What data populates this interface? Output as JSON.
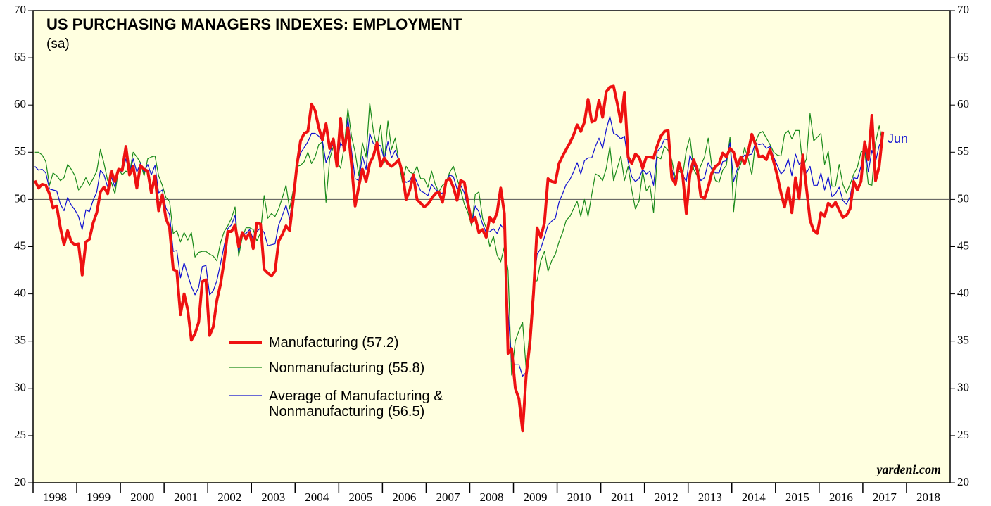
{
  "chart_data": {
    "type": "line",
    "title": "US PURCHASING MANAGERS INDEXES: EMPLOYMENT",
    "subtitle": "(sa)",
    "annotations": [
      "Jun",
      "yardeni.com"
    ],
    "x": [
      "1998-01",
      "1998-02",
      "1998-03",
      "1998-04",
      "1998-05",
      "1998-06",
      "1998-07",
      "1998-08",
      "1998-09",
      "1998-10",
      "1998-11",
      "1998-12",
      "1999-01",
      "1999-02",
      "1999-03",
      "1999-04",
      "1999-05",
      "1999-06",
      "1999-07",
      "1999-08",
      "1999-09",
      "1999-10",
      "1999-11",
      "1999-12",
      "2000-01",
      "2000-02",
      "2000-03",
      "2000-04",
      "2000-05",
      "2000-06",
      "2000-07",
      "2000-08",
      "2000-09",
      "2000-10",
      "2000-11",
      "2000-12",
      "2001-01",
      "2001-02",
      "2001-03",
      "2001-04",
      "2001-05",
      "2001-06",
      "2001-07",
      "2001-08",
      "2001-09",
      "2001-10",
      "2001-11",
      "2001-12",
      "2002-01",
      "2002-02",
      "2002-03",
      "2002-04",
      "2002-05",
      "2002-06",
      "2002-07",
      "2002-08",
      "2002-09",
      "2002-10",
      "2002-11",
      "2002-12",
      "2003-01",
      "2003-02",
      "2003-03",
      "2003-04",
      "2003-05",
      "2003-06",
      "2003-07",
      "2003-08",
      "2003-09",
      "2003-10",
      "2003-11",
      "2003-12",
      "2004-01",
      "2004-02",
      "2004-03",
      "2004-04",
      "2004-05",
      "2004-06",
      "2004-07",
      "2004-08",
      "2004-09",
      "2004-10",
      "2004-11",
      "2004-12",
      "2005-01",
      "2005-02",
      "2005-03",
      "2005-04",
      "2005-05",
      "2005-06",
      "2005-07",
      "2005-08",
      "2005-09",
      "2005-10",
      "2005-11",
      "2005-12",
      "2006-01",
      "2006-02",
      "2006-03",
      "2006-04",
      "2006-05",
      "2006-06",
      "2006-07",
      "2006-08",
      "2006-09",
      "2006-10",
      "2006-11",
      "2006-12",
      "2007-01",
      "2007-02",
      "2007-03",
      "2007-04",
      "2007-05",
      "2007-06",
      "2007-07",
      "2007-08",
      "2007-09",
      "2007-10",
      "2007-11",
      "2007-12",
      "2008-01",
      "2008-02",
      "2008-03",
      "2008-04",
      "2008-05",
      "2008-06",
      "2008-07",
      "2008-08",
      "2008-09",
      "2008-10",
      "2008-11",
      "2008-12",
      "2009-01",
      "2009-02",
      "2009-03",
      "2009-04",
      "2009-05",
      "2009-06",
      "2009-07",
      "2009-08",
      "2009-09",
      "2009-10",
      "2009-11",
      "2009-12",
      "2010-01",
      "2010-02",
      "2010-03",
      "2010-04",
      "2010-05",
      "2010-06",
      "2010-07",
      "2010-08",
      "2010-09",
      "2010-10",
      "2010-11",
      "2010-12",
      "2011-01",
      "2011-02",
      "2011-03",
      "2011-04",
      "2011-05",
      "2011-06",
      "2011-07",
      "2011-08",
      "2011-09",
      "2011-10",
      "2011-11",
      "2011-12",
      "2012-01",
      "2012-02",
      "2012-03",
      "2012-04",
      "2012-05",
      "2012-06",
      "2012-07",
      "2012-08",
      "2012-09",
      "2012-10",
      "2012-11",
      "2012-12",
      "2013-01",
      "2013-02",
      "2013-03",
      "2013-04",
      "2013-05",
      "2013-06",
      "2013-07",
      "2013-08",
      "2013-09",
      "2013-10",
      "2013-11",
      "2013-12",
      "2014-01",
      "2014-02",
      "2014-03",
      "2014-04",
      "2014-05",
      "2014-06",
      "2014-07",
      "2014-08",
      "2014-09",
      "2014-10",
      "2014-11",
      "2014-12",
      "2015-01",
      "2015-02",
      "2015-03",
      "2015-04",
      "2015-05",
      "2015-06",
      "2015-07",
      "2015-08",
      "2015-09",
      "2015-10",
      "2015-11",
      "2015-12",
      "2016-01",
      "2016-02",
      "2016-03",
      "2016-04",
      "2016-05",
      "2016-06",
      "2016-07",
      "2016-08",
      "2016-09",
      "2016-10",
      "2016-11",
      "2016-12",
      "2017-01",
      "2017-02",
      "2017-03",
      "2017-04",
      "2017-05",
      "2017-06"
    ],
    "series": [
      {
        "name": "Manufacturing (57.2)",
        "color": "#ee1111",
        "width": 4,
        "values": [
          52,
          51.2,
          51.6,
          51.5,
          50.6,
          49.1,
          49.3,
          47.0,
          45.2,
          46.7,
          45.5,
          45.2,
          45.3,
          42.0,
          45.5,
          45.8,
          47.5,
          48.6,
          50.8,
          51.3,
          50.6,
          53.0,
          51.9,
          53.2,
          53.1,
          55.6,
          52.6,
          53.5,
          51.2,
          53.6,
          53.2,
          53.0,
          50.7,
          52.5,
          48.8,
          50.5,
          48.0,
          47.0,
          42.6,
          42.4,
          37.8,
          40.0,
          38.3,
          35.1,
          35.8,
          37.0,
          41.3,
          41.5,
          35.6,
          36.5,
          39.3,
          41.0,
          43.5,
          46.6,
          46.6,
          47.3,
          45.0,
          46.5,
          45.8,
          46.5,
          44.8,
          47.5,
          47.4,
          42.6,
          42.2,
          41.9,
          42.4,
          45.6,
          46.3,
          47.2,
          46.7,
          50.0,
          53.6,
          56.2,
          57.0,
          57.2,
          60.1,
          59.4,
          57.6,
          56.3,
          58.0,
          55.4,
          56.4,
          53.5,
          58.6,
          55.2,
          57.6,
          53.7,
          49.3,
          51.4,
          53.2,
          51.9,
          53.8,
          54.6,
          56.0,
          53.5,
          54.4,
          53.8,
          53.5,
          53.8,
          54.2,
          52.8,
          50.0,
          51.0,
          52.6,
          50.0,
          49.6,
          49.2,
          49.5,
          50.1,
          50.6,
          50.8,
          49.7,
          52.0,
          52.2,
          51.3,
          49.9,
          52.0,
          51.8,
          49.6,
          47.6,
          48.1,
          46.5,
          46.8,
          46.0,
          48.1,
          47.6,
          48.6,
          51.2,
          48.5,
          33.7,
          34.2,
          30.0,
          28.9,
          25.5,
          31.4,
          34.7,
          40.1,
          47.0,
          46.0,
          47.5,
          52.2,
          51.9,
          51.8,
          53.8,
          54.6,
          55.3,
          56.0,
          56.8,
          57.9,
          57.2,
          58.2,
          60.6,
          58.2,
          58.4,
          60.5,
          58.7,
          61.4,
          61.9,
          62.0,
          60.2,
          58.2,
          61.3,
          54.5,
          53.8,
          54.8,
          54.5,
          53.3,
          54.5,
          54.5,
          54.4,
          55.7,
          56.7,
          57.2,
          57.3,
          52.3,
          51.6,
          53.9,
          52.5,
          48.5,
          52.7,
          54.2,
          53.2,
          50.3,
          50.1,
          51.3,
          52.8,
          53.5,
          53.8,
          54.9,
          54.5,
          55.4,
          55.0,
          53.5,
          54.5,
          53.8,
          55.0,
          56.9,
          55.8,
          54.5,
          54.6,
          54.2,
          55.3,
          54.0,
          52.5,
          50.7,
          49.2,
          51.2,
          48.6,
          52.3,
          50.1,
          54.7,
          51.2,
          47.8,
          46.7,
          46.4,
          48.6,
          48.2,
          49.6,
          49.2,
          49.7,
          48.9,
          48.1,
          48.3,
          49.0,
          51.9,
          51.0,
          51.9,
          56.1,
          54.2,
          58.9,
          52.0,
          53.5,
          57.2
        ]
      },
      {
        "name": "Nonmanufacturing (55.8)",
        "color": "#1a8a1a",
        "width": 1.2,
        "values": [
          55.0,
          55.0,
          54.7,
          54.0,
          51.5,
          52.8,
          52.5,
          52.0,
          52.3,
          53.7,
          53.2,
          52.5,
          51.0,
          51.5,
          52.3,
          51.5,
          52.2,
          53.0,
          55.3,
          53.8,
          52.0,
          51.8,
          50.6,
          53.2,
          52.6,
          53.0,
          52.8,
          55.0,
          54.5,
          53.9,
          52.5,
          54.3,
          54.5,
          54.6,
          52.5,
          51.5,
          50.2,
          49.8,
          46.4,
          46.7,
          45.5,
          46.5,
          45.7,
          46.5,
          43.9,
          44.4,
          44.5,
          44.5,
          44.2,
          44.0,
          43.5,
          45.4,
          46.6,
          47.2,
          48.0,
          49.2,
          44.0,
          46.0,
          47.0,
          47.0,
          46.8,
          45.6,
          46.5,
          50.4,
          48.0,
          48.5,
          48.2,
          49.0,
          50.2,
          51.5,
          49.0,
          51.0,
          53.5,
          53.6,
          54.0,
          55.0,
          53.8,
          54.5,
          55.8,
          56.1,
          49.7,
          54.3,
          55.6,
          54.0,
          53.3,
          55.6,
          59.6,
          56.7,
          55.0,
          52.5,
          56.0,
          54.5,
          60.2,
          57.2,
          55.5,
          57.9,
          53.9,
          58.3,
          55.3,
          56.5,
          54.0,
          51.8,
          53.5,
          52.9,
          52.7,
          53.5,
          52.2,
          52.2,
          51.3,
          53.0,
          51.6,
          50.8,
          51.5,
          51.8,
          52.9,
          53.5,
          52.2,
          51.0,
          49.5,
          48.6,
          47.2,
          50.5,
          50.8,
          48.0,
          47.0,
          45.0,
          46.1,
          44.1,
          43.4,
          45.0,
          42.5,
          31.4,
          35.0,
          36.1,
          37.0,
          32.0,
          36.2,
          41.3,
          41.4,
          43.5,
          44.5,
          42.4,
          43.5,
          44.2,
          45.5,
          46.5,
          47.8,
          48.2,
          49.0,
          49.8,
          48.2,
          50.0,
          48.2,
          50.5,
          52.7,
          52.5,
          52.0,
          53.3,
          55.6,
          52.0,
          53.3,
          54.6,
          52.0,
          53.5,
          51.0,
          49.0,
          49.8,
          53.0,
          50.9,
          51.5,
          48.6,
          54.5,
          54.3,
          55.6,
          55.2,
          54.2,
          52.2,
          53.0,
          52.6,
          55.2,
          56.6,
          53.2,
          52.5,
          53.6,
          54.5,
          56.5,
          53.5,
          52.0,
          51.8,
          53.1,
          53.6,
          56.6,
          48.7,
          52.8,
          53.8,
          55.5,
          54.3,
          52.6,
          56.1,
          57.0,
          57.2,
          56.5,
          55.8,
          55.0,
          54.7,
          54.6,
          56.9,
          57.3,
          56.4,
          57.3,
          57.3,
          53.4,
          54.3,
          59.1,
          56.2,
          56.6,
          57.0,
          53.7,
          55.1,
          51.4,
          51.4,
          53.7,
          51.6,
          50.7,
          51.6,
          52.7,
          53.4,
          55.0,
          55.2,
          51.6,
          51.5,
          56.0,
          57.8,
          55.8
        ]
      },
      {
        "name": "Average of Manufacturing & Nonmanufacturing (56.5)",
        "color": "#1010d0",
        "width": 1.2,
        "values": [
          53.5,
          53.1,
          53.2,
          52.8,
          51.1,
          51.0,
          50.9,
          49.5,
          48.8,
          50.2,
          49.4,
          48.9,
          48.2,
          46.8,
          48.9,
          48.7,
          49.9,
          50.8,
          53.1,
          52.6,
          51.3,
          52.4,
          51.3,
          53.2,
          52.9,
          54.3,
          52.7,
          54.3,
          52.9,
          53.8,
          52.9,
          53.7,
          52.6,
          53.6,
          50.7,
          51.0,
          49.1,
          48.4,
          44.5,
          44.6,
          41.7,
          43.3,
          42.0,
          40.8,
          39.9,
          40.7,
          42.9,
          43.0,
          39.9,
          40.3,
          41.4,
          43.2,
          45.1,
          46.9,
          47.3,
          48.3,
          44.5,
          46.3,
          46.4,
          46.8,
          45.8,
          46.6,
          47.0,
          46.5,
          45.1,
          45.2,
          45.3,
          47.3,
          48.3,
          49.4,
          47.9,
          50.5,
          53.6,
          54.9,
          55.5,
          56.1,
          57.0,
          57.0,
          56.7,
          56.2,
          53.9,
          54.9,
          56.0,
          53.8,
          56.0,
          55.4,
          58.6,
          55.2,
          52.2,
          52.0,
          54.6,
          53.2,
          57.0,
          55.9,
          55.8,
          55.7,
          54.2,
          56.1,
          54.4,
          55.2,
          54.1,
          52.3,
          51.8,
          52.0,
          52.7,
          51.8,
          50.9,
          50.7,
          50.4,
          51.6,
          51.1,
          50.8,
          50.6,
          51.9,
          52.6,
          52.4,
          51.1,
          51.5,
          50.7,
          49.1,
          47.4,
          49.3,
          48.7,
          47.4,
          46.5,
          46.6,
          46.9,
          46.4,
          47.3,
          46.8,
          38.1,
          32.8,
          32.5,
          32.5,
          31.3,
          31.7,
          35.5,
          40.7,
          44.2,
          44.8,
          46.0,
          47.3,
          47.7,
          48.0,
          49.7,
          50.6,
          51.6,
          52.1,
          52.9,
          53.9,
          52.7,
          54.1,
          54.4,
          54.4,
          55.6,
          56.5,
          55.4,
          57.4,
          58.8,
          57.0,
          56.8,
          56.4,
          56.7,
          54.0,
          52.4,
          51.9,
          52.2,
          53.2,
          52.7,
          53.0,
          51.5,
          55.1,
          55.5,
          56.4,
          56.3,
          53.3,
          51.9,
          53.5,
          52.6,
          51.9,
          54.7,
          53.7,
          52.9,
          52.0,
          52.3,
          53.9,
          53.2,
          52.8,
          52.8,
          54.0,
          54.1,
          56.0,
          51.9,
          53.2,
          54.2,
          54.7,
          54.7,
          54.8,
          56.0,
          55.8,
          55.9,
          55.4,
          55.6,
          54.5,
          53.6,
          52.7,
          53.1,
          54.3,
          52.5,
          54.8,
          53.7,
          54.1,
          52.8,
          53.5,
          51.5,
          51.5,
          52.8,
          51.0,
          52.4,
          50.3,
          50.6,
          51.3,
          49.9,
          49.5,
          50.3,
          52.3,
          52.2,
          53.5,
          55.7,
          52.9,
          55.2,
          54.0,
          55.7,
          56.5
        ]
      }
    ],
    "hline": 50,
    "xlim": [
      1998,
      2019
    ],
    "xticks": [
      1998,
      1999,
      2000,
      2001,
      2002,
      2003,
      2004,
      2005,
      2006,
      2007,
      2008,
      2009,
      2010,
      2011,
      2012,
      2013,
      2014,
      2015,
      2016,
      2017,
      2018
    ],
    "ylim": [
      20,
      70
    ],
    "yticks": [
      20,
      25,
      30,
      35,
      40,
      45,
      50,
      55,
      60,
      65,
      70
    ]
  }
}
